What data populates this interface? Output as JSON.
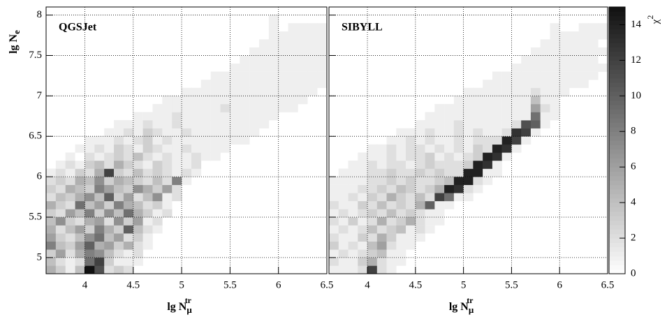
{
  "chart_data": [
    {
      "type": "heatmap",
      "title": "QGSJet",
      "colormap": "gray",
      "x_label": "lg N",
      "x_label_sub": "μ",
      "x_label_sup": "tr",
      "y_label": "lg N",
      "y_label_sub": "e",
      "xlim": [
        3.6,
        6.5
      ],
      "ylim": [
        4.8,
        8.1
      ],
      "xbin": 0.1,
      "ybin": 0.1,
      "zlim": [
        0,
        15
      ],
      "xticks": [
        4,
        4.5,
        5,
        5.5,
        6,
        6.5
      ],
      "yticks": [
        5,
        5.5,
        6,
        6.5,
        7,
        7.5,
        8
      ],
      "grid": true,
      "rows": [
        {
          "y": 4.8,
          "x0": 3.6,
          "values": [
            5,
            3,
            1,
            4,
            15,
            11,
            2,
            3,
            2,
            0
          ]
        },
        {
          "y": 4.9,
          "x0": 3.6,
          "values": [
            4,
            2,
            1,
            2,
            9,
            12,
            3,
            1,
            1,
            1
          ]
        },
        {
          "y": 5.0,
          "x0": 3.6,
          "values": [
            3,
            6,
            2,
            5,
            8,
            7,
            4,
            2,
            1,
            2
          ]
        },
        {
          "y": 5.1,
          "x0": 3.6,
          "values": [
            8,
            4,
            3,
            6,
            10,
            5,
            6,
            3,
            5,
            2,
            1
          ]
        },
        {
          "y": 5.2,
          "x0": 3.6,
          "values": [
            6,
            3,
            2,
            4,
            7,
            9,
            4,
            6,
            2,
            3,
            1
          ]
        },
        {
          "y": 5.3,
          "x0": 3.6,
          "values": [
            5,
            2,
            4,
            6,
            3,
            8,
            5,
            3,
            10,
            4,
            2,
            1
          ]
        },
        {
          "y": 5.4,
          "x0": 3.6,
          "values": [
            4,
            7,
            3,
            2,
            5,
            6,
            2,
            7,
            3,
            6,
            1,
            2
          ]
        },
        {
          "y": 5.5,
          "x0": 3.6,
          "values": [
            3,
            2,
            6,
            4,
            8,
            3,
            7,
            4,
            9,
            5,
            3,
            1,
            2
          ]
        },
        {
          "y": 5.6,
          "x0": 3.6,
          "values": [
            5,
            3,
            2,
            9,
            4,
            6,
            3,
            8,
            5,
            4,
            2,
            3,
            1
          ]
        },
        {
          "y": 5.7,
          "x0": 3.6,
          "values": [
            2,
            4,
            3,
            5,
            7,
            4,
            10,
            3,
            6,
            2,
            4,
            7,
            1,
            2
          ]
        },
        {
          "y": 5.8,
          "x0": 3.6,
          "values": [
            3,
            2,
            5,
            4,
            3,
            8,
            6,
            4,
            3,
            7,
            5,
            3,
            6,
            2
          ]
        },
        {
          "y": 5.9,
          "x0": 3.6,
          "values": [
            2,
            3,
            2,
            5,
            4,
            7,
            3,
            5,
            4,
            3,
            2,
            4,
            2,
            8,
            1
          ]
        },
        {
          "y": 6.0,
          "x0": 3.6,
          "values": [
            1,
            2,
            1,
            3,
            2,
            5,
            12,
            3,
            2,
            4,
            2,
            3,
            2,
            1,
            2,
            1
          ]
        },
        {
          "y": 6.1,
          "x0": 3.7,
          "values": [
            1,
            2,
            1,
            3,
            4,
            2,
            5,
            3,
            2,
            1,
            3,
            2,
            1,
            1,
            2
          ]
        },
        {
          "y": 6.2,
          "x0": 3.8,
          "values": [
            1,
            0,
            2,
            1,
            2,
            3,
            2,
            4,
            2,
            1,
            2,
            1,
            1,
            2,
            1,
            1
          ]
        },
        {
          "y": 6.3,
          "x0": 3.9,
          "values": [
            1,
            1,
            2,
            1,
            3,
            2,
            1,
            3,
            2,
            1,
            1,
            2,
            1,
            1,
            1,
            1
          ]
        },
        {
          "y": 6.4,
          "x0": 4.0,
          "values": [
            1,
            1,
            1,
            2,
            1,
            2,
            3,
            1,
            2,
            1,
            1,
            1,
            1,
            1,
            1,
            1,
            1
          ]
        },
        {
          "y": 6.5,
          "x0": 4.2,
          "values": [
            1,
            1,
            2,
            1,
            3,
            2,
            1,
            1,
            2,
            1,
            1,
            1,
            1,
            1,
            1,
            1
          ]
        },
        {
          "y": 6.6,
          "x0": 4.3,
          "values": [
            1,
            1,
            1,
            2,
            1,
            1,
            2,
            1,
            1,
            1,
            1,
            1,
            1,
            1,
            1,
            1
          ]
        },
        {
          "y": 6.7,
          "x0": 4.5,
          "values": [
            1,
            1,
            1,
            1,
            2,
            1,
            1,
            1,
            1,
            1,
            1,
            1,
            1,
            1,
            1
          ]
        },
        {
          "y": 6.8,
          "x0": 4.7,
          "values": [
            1,
            1,
            1,
            1,
            1,
            1,
            1,
            2,
            1,
            1,
            1,
            1,
            1,
            1,
            1
          ]
        },
        {
          "y": 6.9,
          "x0": 4.8,
          "values": [
            1,
            1,
            1,
            1,
            1,
            1,
            1,
            1,
            1,
            1,
            1,
            1,
            1,
            1,
            1
          ]
        },
        {
          "y": 7.0,
          "x0": 5.0,
          "values": [
            1,
            1,
            1,
            1,
            1,
            1,
            1,
            1,
            1,
            1,
            1,
            1,
            1,
            1
          ]
        },
        {
          "y": 7.1,
          "x0": 5.2,
          "values": [
            1,
            1,
            1,
            1,
            1,
            1,
            1,
            1,
            1,
            1,
            1,
            1,
            1
          ]
        },
        {
          "y": 7.2,
          "x0": 5.3,
          "values": [
            1,
            1,
            1,
            1,
            1,
            1,
            1,
            1,
            1,
            1,
            1,
            1
          ]
        },
        {
          "y": 7.3,
          "x0": 5.5,
          "values": [
            1,
            1,
            1,
            1,
            1,
            1,
            1,
            1,
            1,
            1
          ]
        },
        {
          "y": 7.4,
          "x0": 5.6,
          "values": [
            1,
            1,
            1,
            1,
            1,
            1,
            1,
            1,
            1
          ]
        },
        {
          "y": 7.5,
          "x0": 5.7,
          "values": [
            1,
            1,
            1,
            1,
            1,
            1,
            1,
            1
          ]
        },
        {
          "y": 7.6,
          "x0": 5.8,
          "values": [
            1,
            1,
            1,
            1,
            1,
            1,
            1
          ]
        },
        {
          "y": 7.7,
          "x0": 5.9,
          "values": [
            1,
            1,
            1,
            1,
            1,
            1
          ]
        },
        {
          "y": 7.8,
          "x0": 5.9,
          "values": [
            1,
            0,
            1,
            1,
            1,
            1
          ]
        },
        {
          "y": 7.9,
          "x0": 5.9,
          "values": [
            1
          ]
        }
      ]
    },
    {
      "type": "heatmap",
      "title": "SIBYLL",
      "colormap": "gray",
      "x_label": "lg N",
      "x_label_sub": "μ",
      "x_label_sup": "tr",
      "xlim": [
        3.6,
        6.5
      ],
      "ylim": [
        4.8,
        8.1
      ],
      "xbin": 0.1,
      "ybin": 0.1,
      "zlim": [
        0,
        15
      ],
      "xticks": [
        4,
        4.5,
        5,
        5.5,
        6,
        6.5
      ],
      "yticks": [
        5,
        5.5,
        6,
        6.5,
        7,
        7.5,
        8
      ],
      "grid": true,
      "colorbar": {
        "label": "χ",
        "label_sup": "2",
        "lim": [
          0,
          15
        ],
        "ticks": [
          0,
          2,
          4,
          6,
          8,
          10,
          12,
          14
        ]
      },
      "rows": [
        {
          "y": 4.8,
          "x0": 3.6,
          "values": [
            1,
            1,
            1,
            2,
            12,
            2,
            1
          ]
        },
        {
          "y": 4.9,
          "x0": 3.6,
          "values": [
            2,
            1,
            1,
            3,
            5,
            2,
            1,
            1
          ]
        },
        {
          "y": 5.0,
          "x0": 3.6,
          "values": [
            1,
            2,
            1,
            2,
            3,
            4,
            1,
            1
          ]
        },
        {
          "y": 5.1,
          "x0": 3.6,
          "values": [
            3,
            1,
            2,
            1,
            4,
            6,
            2,
            1,
            1
          ]
        },
        {
          "y": 5.2,
          "x0": 3.6,
          "values": [
            2,
            1,
            1,
            3,
            2,
            5,
            3,
            1,
            1,
            1
          ]
        },
        {
          "y": 5.3,
          "x0": 3.6,
          "values": [
            1,
            2,
            1,
            2,
            4,
            2,
            3,
            4,
            1,
            2,
            1
          ]
        },
        {
          "y": 5.4,
          "x0": 3.6,
          "values": [
            2,
            1,
            3,
            1,
            2,
            5,
            2,
            3,
            5,
            2,
            1,
            1
          ]
        },
        {
          "y": 5.5,
          "x0": 3.6,
          "values": [
            1,
            2,
            1,
            2,
            3,
            2,
            4,
            2,
            3,
            2,
            1,
            1
          ]
        },
        {
          "y": 5.6,
          "x0": 3.6,
          "values": [
            2,
            1,
            1,
            3,
            2,
            4,
            2,
            3,
            2,
            5,
            10,
            1,
            1
          ]
        },
        {
          "y": 5.7,
          "x0": 3.6,
          "values": [
            1,
            1,
            2,
            1,
            3,
            2,
            5,
            3,
            2,
            4,
            2,
            12,
            9,
            1,
            1
          ]
        },
        {
          "y": 5.8,
          "x0": 3.6,
          "values": [
            1,
            1,
            1,
            2,
            2,
            3,
            2,
            4,
            3,
            2,
            3,
            5,
            14,
            13,
            2,
            1
          ]
        },
        {
          "y": 5.9,
          "x0": 3.6,
          "values": [
            1,
            1,
            1,
            1,
            2,
            2,
            3,
            2,
            3,
            2,
            2,
            3,
            4,
            14,
            14,
            2,
            1
          ]
        },
        {
          "y": 6.0,
          "x0": 3.7,
          "values": [
            1,
            1,
            1,
            2,
            2,
            3,
            2,
            2,
            3,
            2,
            3,
            2,
            2,
            14,
            14,
            1,
            1
          ]
        },
        {
          "y": 6.1,
          "x0": 3.8,
          "values": [
            1,
            1,
            2,
            1,
            2,
            2,
            1,
            2,
            3,
            2,
            2,
            2,
            3,
            14,
            13,
            1
          ]
        },
        {
          "y": 6.2,
          "x0": 3.9,
          "values": [
            1,
            1,
            1,
            2,
            1,
            2,
            2,
            3,
            1,
            2,
            1,
            2,
            3,
            14,
            13,
            1
          ]
        },
        {
          "y": 6.3,
          "x0": 4.0,
          "values": [
            1,
            1,
            2,
            1,
            2,
            2,
            1,
            2,
            1,
            2,
            1,
            3,
            2,
            14,
            13,
            1
          ]
        },
        {
          "y": 6.4,
          "x0": 4.2,
          "values": [
            1,
            1,
            2,
            1,
            2,
            1,
            1,
            2,
            1,
            2,
            2,
            2,
            14,
            12,
            1
          ]
        },
        {
          "y": 6.5,
          "x0": 4.3,
          "values": [
            1,
            1,
            1,
            2,
            1,
            1,
            2,
            1,
            2,
            1,
            1,
            2,
            13,
            12,
            1
          ]
        },
        {
          "y": 6.6,
          "x0": 4.5,
          "values": [
            1,
            1,
            1,
            1,
            2,
            1,
            1,
            1,
            1,
            1,
            2,
            11,
            10,
            1
          ]
        },
        {
          "y": 6.7,
          "x0": 4.6,
          "values": [
            1,
            1,
            1,
            1,
            1,
            1,
            1,
            1,
            1,
            1,
            1,
            9,
            1,
            1
          ]
        },
        {
          "y": 6.8,
          "x0": 4.7,
          "values": [
            1,
            1,
            1,
            1,
            1,
            1,
            1,
            1,
            1,
            1,
            6,
            2,
            1
          ]
        },
        {
          "y": 6.9,
          "x0": 4.9,
          "values": [
            1,
            1,
            1,
            1,
            1,
            1,
            1,
            1,
            4,
            1,
            1
          ]
        },
        {
          "y": 7.0,
          "x0": 5.0,
          "values": [
            1,
            1,
            1,
            1,
            1,
            1,
            1,
            2,
            1,
            1,
            1
          ]
        },
        {
          "y": 7.1,
          "x0": 5.2,
          "values": [
            1,
            1,
            1,
            1,
            1,
            1,
            1,
            1,
            1,
            1,
            1
          ]
        },
        {
          "y": 7.2,
          "x0": 5.3,
          "values": [
            1,
            1,
            1,
            1,
            1,
            1,
            1,
            1,
            1,
            1,
            1
          ]
        },
        {
          "y": 7.3,
          "x0": 5.5,
          "values": [
            1,
            1,
            1,
            1,
            1,
            1,
            1,
            1,
            1,
            1
          ]
        },
        {
          "y": 7.4,
          "x0": 5.6,
          "values": [
            1,
            1,
            1,
            1,
            1,
            1,
            1,
            1
          ]
        },
        {
          "y": 7.5,
          "x0": 5.7,
          "values": [
            1,
            1,
            1,
            1,
            1,
            1,
            1,
            1
          ]
        },
        {
          "y": 7.6,
          "x0": 5.8,
          "values": [
            1,
            1,
            1,
            1,
            1,
            1
          ]
        },
        {
          "y": 7.7,
          "x0": 5.9,
          "values": [
            1,
            1,
            1,
            1,
            1,
            1
          ]
        },
        {
          "y": 7.8,
          "x0": 5.9,
          "values": [
            1,
            0,
            0,
            1,
            1,
            1
          ]
        }
      ]
    }
  ]
}
